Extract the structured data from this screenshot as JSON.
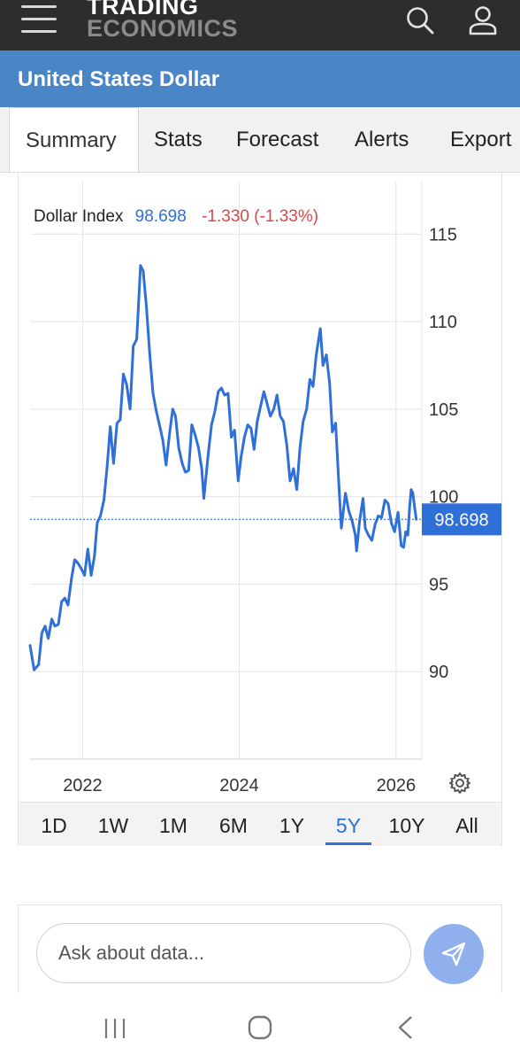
{
  "header": {
    "logo_line1": "TRADING",
    "logo_line2": "ECONOMICS",
    "menu_icon": "hamburger-menu-icon",
    "search_icon": "search-icon",
    "user_icon": "user-icon"
  },
  "page": {
    "title": "United States Dollar"
  },
  "tabs": [
    {
      "label": "Summary",
      "active": true
    },
    {
      "label": "Stats",
      "active": false
    },
    {
      "label": "Forecast",
      "active": false
    },
    {
      "label": "Alerts",
      "active": false
    },
    {
      "label": "Export",
      "active": false
    }
  ],
  "quote": {
    "name": "Dollar Index",
    "price": "98.698",
    "change": "-1.330 (-1.33%)",
    "price_color": "#2f6fd8",
    "change_color": "#d24a4a"
  },
  "colors": {
    "accent": "#4a86c5",
    "line": "#2f6fd8",
    "send": "#8fb0ec"
  },
  "chart_data": {
    "type": "line",
    "title": "",
    "xlabel": "",
    "ylabel": "",
    "x_ticks": [
      "2022",
      "2024",
      "2026"
    ],
    "y_ticks": [
      115,
      110,
      105,
      100,
      95,
      90
    ],
    "ylim": [
      85,
      118
    ],
    "xlim": [
      "2021-05-01",
      "2026-05-01"
    ],
    "grid": true,
    "last_value_label": "98.698",
    "series": [
      {
        "name": "",
        "points": [
          [
            "2021-05-01",
            91.5
          ],
          [
            "2021-05-20",
            90.1
          ],
          [
            "2021-06-10",
            90.4
          ],
          [
            "2021-06-25",
            92.2
          ],
          [
            "2021-07-10",
            92.6
          ],
          [
            "2021-07-25",
            91.9
          ],
          [
            "2021-08-10",
            93.0
          ],
          [
            "2021-08-25",
            92.6
          ],
          [
            "2021-09-10",
            92.7
          ],
          [
            "2021-09-25",
            94.0
          ],
          [
            "2021-10-10",
            94.2
          ],
          [
            "2021-10-25",
            93.8
          ],
          [
            "2021-11-10",
            95.3
          ],
          [
            "2021-11-25",
            96.4
          ],
          [
            "2021-12-10",
            96.2
          ],
          [
            "2021-12-25",
            95.9
          ],
          [
            "2022-01-10",
            95.5
          ],
          [
            "2022-01-25",
            97.0
          ],
          [
            "2022-02-10",
            95.5
          ],
          [
            "2022-02-25",
            96.6
          ],
          [
            "2022-03-10",
            98.5
          ],
          [
            "2022-03-25",
            98.9
          ],
          [
            "2022-04-10",
            99.8
          ],
          [
            "2022-04-25",
            101.7
          ],
          [
            "2022-05-10",
            104.0
          ],
          [
            "2022-05-25",
            101.9
          ],
          [
            "2022-06-10",
            104.2
          ],
          [
            "2022-06-25",
            104.4
          ],
          [
            "2022-07-10",
            107.0
          ],
          [
            "2022-07-25",
            106.4
          ],
          [
            "2022-08-10",
            105.0
          ],
          [
            "2022-08-25",
            108.6
          ],
          [
            "2022-09-10",
            109.0
          ],
          [
            "2022-09-28",
            113.2
          ],
          [
            "2022-10-10",
            112.9
          ],
          [
            "2022-10-25",
            110.9
          ],
          [
            "2022-11-10",
            108.1
          ],
          [
            "2022-11-25",
            105.9
          ],
          [
            "2022-12-10",
            104.9
          ],
          [
            "2022-12-25",
            104.1
          ],
          [
            "2023-01-10",
            103.2
          ],
          [
            "2023-01-25",
            101.8
          ],
          [
            "2023-02-10",
            103.6
          ],
          [
            "2023-02-25",
            105.0
          ],
          [
            "2023-03-10",
            104.6
          ],
          [
            "2023-03-25",
            102.8
          ],
          [
            "2023-04-10",
            101.9
          ],
          [
            "2023-04-25",
            101.4
          ],
          [
            "2023-05-10",
            101.5
          ],
          [
            "2023-05-25",
            104.1
          ],
          [
            "2023-06-10",
            103.5
          ],
          [
            "2023-06-25",
            102.8
          ],
          [
            "2023-07-10",
            101.6
          ],
          [
            "2023-07-20",
            99.9
          ],
          [
            "2023-08-10",
            102.5
          ],
          [
            "2023-08-25",
            104.1
          ],
          [
            "2023-09-10",
            104.9
          ],
          [
            "2023-09-25",
            106.0
          ],
          [
            "2023-10-10",
            106.2
          ],
          [
            "2023-10-25",
            105.8
          ],
          [
            "2023-11-10",
            105.9
          ],
          [
            "2023-11-25",
            103.4
          ],
          [
            "2023-12-10",
            103.8
          ],
          [
            "2023-12-27",
            100.9
          ],
          [
            "2024-01-10",
            102.3
          ],
          [
            "2024-01-25",
            103.4
          ],
          [
            "2024-02-10",
            104.1
          ],
          [
            "2024-02-25",
            103.9
          ],
          [
            "2024-03-10",
            102.7
          ],
          [
            "2024-03-25",
            104.3
          ],
          [
            "2024-04-10",
            105.2
          ],
          [
            "2024-04-25",
            106.0
          ],
          [
            "2024-05-10",
            105.3
          ],
          [
            "2024-05-25",
            104.6
          ],
          [
            "2024-06-10",
            105.0
          ],
          [
            "2024-06-25",
            105.8
          ],
          [
            "2024-07-10",
            104.6
          ],
          [
            "2024-07-25",
            104.3
          ],
          [
            "2024-08-10",
            102.9
          ],
          [
            "2024-08-25",
            100.9
          ],
          [
            "2024-09-10",
            101.6
          ],
          [
            "2024-09-25",
            100.4
          ],
          [
            "2024-10-10",
            102.8
          ],
          [
            "2024-10-25",
            104.3
          ],
          [
            "2024-11-10",
            105.0
          ],
          [
            "2024-11-25",
            106.7
          ],
          [
            "2024-12-10",
            106.3
          ],
          [
            "2024-12-25",
            108.1
          ],
          [
            "2025-01-13",
            109.6
          ],
          [
            "2025-01-25",
            107.5
          ],
          [
            "2025-02-10",
            108.1
          ],
          [
            "2025-02-25",
            106.5
          ],
          [
            "2025-03-10",
            103.7
          ],
          [
            "2025-03-25",
            104.2
          ],
          [
            "2025-04-10",
            100.5
          ],
          [
            "2025-04-21",
            98.2
          ],
          [
            "2025-05-10",
            100.2
          ],
          [
            "2025-05-25",
            99.2
          ],
          [
            "2025-06-10",
            98.6
          ],
          [
            "2025-06-25",
            97.8
          ],
          [
            "2025-07-01",
            96.9
          ],
          [
            "2025-07-15",
            98.6
          ],
          [
            "2025-07-31",
            99.9
          ],
          [
            "2025-08-10",
            98.2
          ],
          [
            "2025-08-25",
            97.8
          ],
          [
            "2025-09-10",
            97.5
          ],
          [
            "2025-09-25",
            98.4
          ],
          [
            "2025-10-10",
            98.9
          ],
          [
            "2025-10-25",
            98.8
          ],
          [
            "2025-11-10",
            99.8
          ],
          [
            "2025-11-25",
            99.6
          ],
          [
            "2025-12-10",
            98.5
          ],
          [
            "2025-12-25",
            98.0
          ],
          [
            "2026-01-10",
            99.1
          ],
          [
            "2026-01-25",
            97.2
          ],
          [
            "2026-02-05",
            97.1
          ],
          [
            "2026-02-15",
            98.0
          ],
          [
            "2026-02-25",
            97.8
          ],
          [
            "2026-03-05",
            99.4
          ],
          [
            "2026-03-12",
            100.4
          ],
          [
            "2026-03-20",
            100.2
          ],
          [
            "2026-03-28",
            99.4
          ],
          [
            "2026-04-05",
            98.7
          ]
        ]
      }
    ]
  },
  "ranges": [
    {
      "label": "1D",
      "active": false
    },
    {
      "label": "1W",
      "active": false
    },
    {
      "label": "1M",
      "active": false
    },
    {
      "label": "6M",
      "active": false
    },
    {
      "label": "1Y",
      "active": false
    },
    {
      "label": "5Y",
      "active": true
    },
    {
      "label": "10Y",
      "active": false
    },
    {
      "label": "All",
      "active": false
    }
  ],
  "ask": {
    "placeholder": "Ask about data..."
  }
}
